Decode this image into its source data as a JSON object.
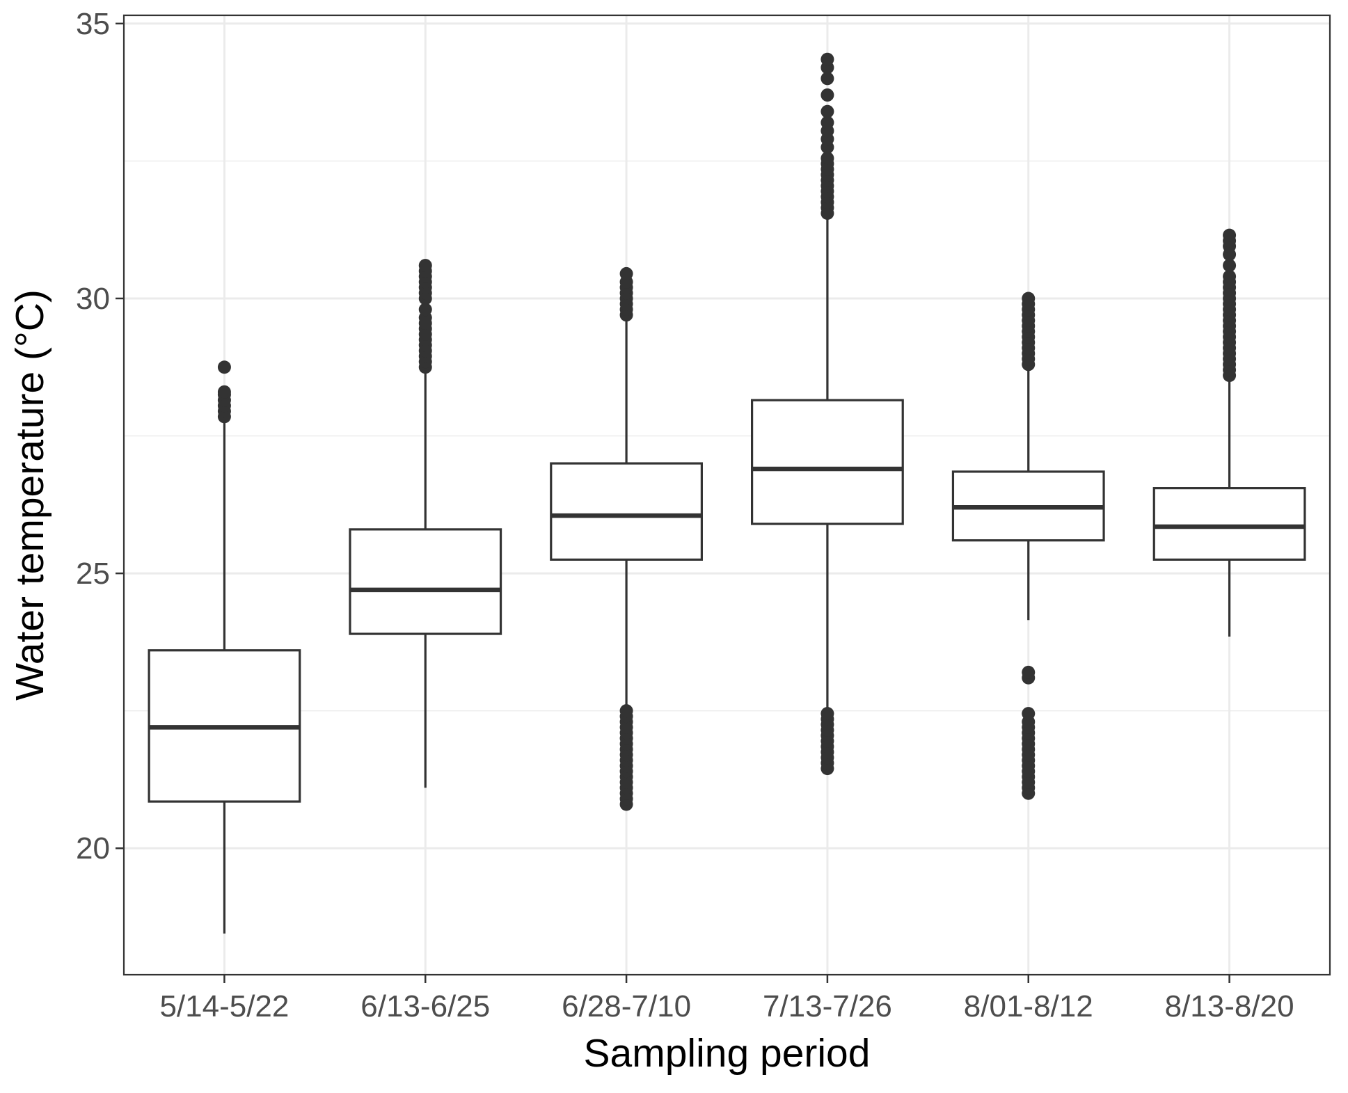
{
  "chart_data": {
    "type": "box",
    "xlabel": "Sampling period",
    "ylabel": "Water temperature (°C)",
    "ylim": [
      17.7,
      35.15
    ],
    "yticks": [
      20,
      25,
      30,
      35
    ],
    "ytick_labels": [
      "20",
      "25",
      "30",
      "35"
    ],
    "grid": true,
    "categories": [
      "5/14-5/22",
      "6/13-6/25",
      "6/28-7/10",
      "7/13-7/26",
      "8/01-8/12",
      "8/13-8/20"
    ],
    "boxes": [
      {
        "category": "5/14-5/22",
        "whisker_low": 18.45,
        "q1": 20.85,
        "median": 22.2,
        "q3": 23.6,
        "whisker_high": 27.8,
        "outliers": [
          27.85,
          27.95,
          28.05,
          28.15,
          28.25,
          28.3,
          28.75
        ]
      },
      {
        "category": "6/13-6/25",
        "whisker_low": 21.1,
        "q1": 23.9,
        "median": 24.7,
        "q3": 25.8,
        "whisker_high": 28.7,
        "outliers": [
          28.75,
          28.85,
          28.95,
          29.05,
          29.15,
          29.25,
          29.35,
          29.45,
          29.55,
          29.65,
          29.8,
          30.0,
          30.1,
          30.2,
          30.3,
          30.4,
          30.5,
          30.6
        ]
      },
      {
        "category": "6/28-7/10",
        "whisker_low": 22.55,
        "q1": 25.25,
        "median": 26.05,
        "q3": 27.0,
        "whisker_high": 29.6,
        "outliers": [
          20.8,
          20.9,
          21.0,
          21.1,
          21.2,
          21.3,
          21.4,
          21.5,
          21.6,
          21.7,
          21.8,
          21.9,
          22.0,
          22.1,
          22.2,
          22.3,
          22.4,
          22.5,
          29.7,
          29.8,
          29.9,
          30.0,
          30.1,
          30.2,
          30.3,
          30.45
        ]
      },
      {
        "category": "7/13-7/26",
        "whisker_low": 22.45,
        "q1": 25.9,
        "median": 26.9,
        "q3": 28.15,
        "whisker_high": 31.55,
        "outliers": [
          21.45,
          21.55,
          21.65,
          21.75,
          21.85,
          21.95,
          22.05,
          22.15,
          22.25,
          22.35,
          22.45,
          31.55,
          31.65,
          31.75,
          31.85,
          31.95,
          32.05,
          32.15,
          32.25,
          32.35,
          32.45,
          32.55,
          32.75,
          32.9,
          33.05,
          33.2,
          33.4,
          33.7,
          34.0,
          34.2,
          34.35
        ]
      },
      {
        "category": "8/01-8/12",
        "whisker_low": 24.15,
        "q1": 25.6,
        "median": 26.2,
        "q3": 26.85,
        "whisker_high": 28.75,
        "outliers": [
          21.0,
          21.1,
          21.2,
          21.3,
          21.4,
          21.5,
          21.6,
          21.7,
          21.8,
          21.9,
          22.0,
          22.1,
          22.2,
          22.3,
          22.45,
          23.1,
          23.2,
          28.8,
          28.9,
          29.0,
          29.1,
          29.2,
          29.3,
          29.4,
          29.5,
          29.6,
          29.7,
          29.8,
          29.9,
          30.0
        ]
      },
      {
        "category": "8/13-8/20",
        "whisker_low": 23.85,
        "q1": 25.25,
        "median": 25.85,
        "q3": 26.55,
        "whisker_high": 28.55,
        "outliers": [
          28.6,
          28.7,
          28.8,
          28.9,
          29.0,
          29.1,
          29.2,
          29.3,
          29.4,
          29.5,
          29.6,
          29.7,
          29.8,
          29.9,
          30.0,
          30.1,
          30.2,
          30.3,
          30.4,
          30.6,
          30.8,
          30.95,
          31.05,
          31.15
        ]
      }
    ],
    "colors": {
      "box_stroke": "#333333",
      "point_fill": "#333333",
      "grid": "#ebebeb",
      "panel_border": "#333333",
      "tick_text": "#4d4d4d",
      "title_text": "#000000",
      "box_fill": "#ffffff"
    }
  }
}
